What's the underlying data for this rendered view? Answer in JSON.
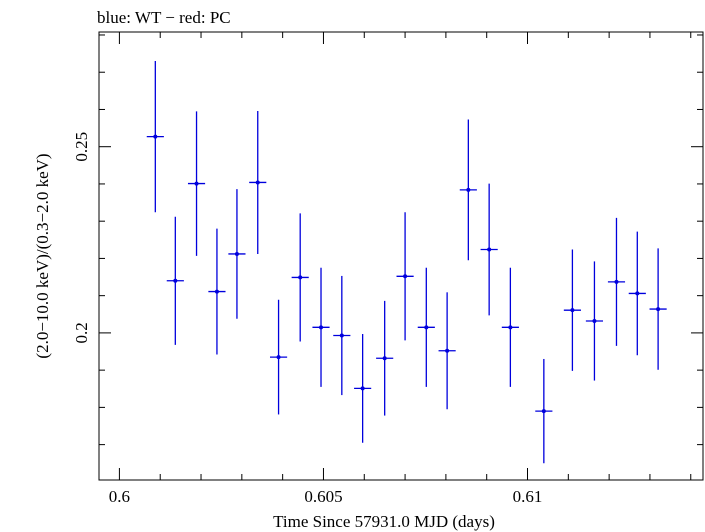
{
  "chart_data": {
    "type": "scatter",
    "title": "blue: WT − red: PC",
    "xlabel": "Time Since 57931.0 MJD (days)",
    "ylabel": "(2.0−10.0 keV)/(0.3−2.0 keV)",
    "xlim": [
      0.5995,
      0.6143
    ],
    "ylim": [
      0.1605,
      0.2808
    ],
    "x_ticks": [
      {
        "value": 0.6,
        "label": "0.6"
      },
      {
        "value": 0.605,
        "label": "0.605"
      },
      {
        "value": 0.61,
        "label": "0.61"
      }
    ],
    "y_ticks": [
      {
        "value": 0.2,
        "label": "0.2"
      },
      {
        "value": 0.25,
        "label": "0.25"
      }
    ],
    "grid": false,
    "series": [
      {
        "color": "#0000dd",
        "points": [
          {
            "x": 0.60088,
            "y": 0.2527,
            "xerr": 0.00021,
            "yerr_low": 0.0203,
            "yerr_high": 0.0203
          },
          {
            "x": 0.60137,
            "y": 0.214,
            "xerr": 0.00021,
            "yerr_low": 0.0172,
            "yerr_high": 0.0172
          },
          {
            "x": 0.60189,
            "y": 0.2401,
            "xerr": 0.00021,
            "yerr_low": 0.0194,
            "yerr_high": 0.0194
          },
          {
            "x": 0.60239,
            "y": 0.2111,
            "xerr": 0.00021,
            "yerr_low": 0.0169,
            "yerr_high": 0.0169
          },
          {
            "x": 0.60288,
            "y": 0.2212,
            "xerr": 0.00021,
            "yerr_low": 0.0174,
            "yerr_high": 0.0174
          },
          {
            "x": 0.60339,
            "y": 0.2404,
            "xerr": 0.00021,
            "yerr_low": 0.0192,
            "yerr_high": 0.0192
          },
          {
            "x": 0.6039,
            "y": 0.1935,
            "xerr": 0.00021,
            "yerr_low": 0.0154,
            "yerr_high": 0.0154
          },
          {
            "x": 0.60443,
            "y": 0.2149,
            "xerr": 0.00021,
            "yerr_low": 0.0172,
            "yerr_high": 0.0172
          },
          {
            "x": 0.60494,
            "y": 0.2015,
            "xerr": 0.00021,
            "yerr_low": 0.016,
            "yerr_high": 0.016
          },
          {
            "x": 0.60545,
            "y": 0.1993,
            "xerr": 0.00021,
            "yerr_low": 0.016,
            "yerr_high": 0.016
          },
          {
            "x": 0.60596,
            "y": 0.1851,
            "xerr": 0.00021,
            "yerr_low": 0.0146,
            "yerr_high": 0.0146
          },
          {
            "x": 0.6065,
            "y": 0.1932,
            "xerr": 0.00021,
            "yerr_low": 0.0154,
            "yerr_high": 0.0154
          },
          {
            "x": 0.607,
            "y": 0.2152,
            "xerr": 0.00021,
            "yerr_low": 0.0172,
            "yerr_high": 0.0172
          },
          {
            "x": 0.60752,
            "y": 0.2015,
            "xerr": 0.00021,
            "yerr_low": 0.016,
            "yerr_high": 0.016
          },
          {
            "x": 0.60803,
            "y": 0.1952,
            "xerr": 0.00021,
            "yerr_low": 0.0157,
            "yerr_high": 0.0157
          },
          {
            "x": 0.60855,
            "y": 0.2384,
            "xerr": 0.00021,
            "yerr_low": 0.0189,
            "yerr_high": 0.0189
          },
          {
            "x": 0.60906,
            "y": 0.2224,
            "xerr": 0.00021,
            "yerr_low": 0.0177,
            "yerr_high": 0.0177
          },
          {
            "x": 0.60958,
            "y": 0.2015,
            "xerr": 0.00021,
            "yerr_low": 0.016,
            "yerr_high": 0.016
          },
          {
            "x": 0.6104,
            "y": 0.179,
            "xerr": 0.00021,
            "yerr_low": 0.014,
            "yerr_high": 0.014
          },
          {
            "x": 0.6111,
            "y": 0.2061,
            "xerr": 0.00021,
            "yerr_low": 0.0163,
            "yerr_high": 0.0163
          },
          {
            "x": 0.61164,
            "y": 0.2032,
            "xerr": 0.00021,
            "yerr_low": 0.016,
            "yerr_high": 0.016
          },
          {
            "x": 0.61218,
            "y": 0.2137,
            "xerr": 0.00021,
            "yerr_low": 0.0172,
            "yerr_high": 0.0172
          },
          {
            "x": 0.61269,
            "y": 0.2106,
            "xerr": 0.00021,
            "yerr_low": 0.0166,
            "yerr_high": 0.0166
          },
          {
            "x": 0.6132,
            "y": 0.2064,
            "xerr": 0.00021,
            "yerr_low": 0.0163,
            "yerr_high": 0.0163
          }
        ]
      }
    ]
  }
}
